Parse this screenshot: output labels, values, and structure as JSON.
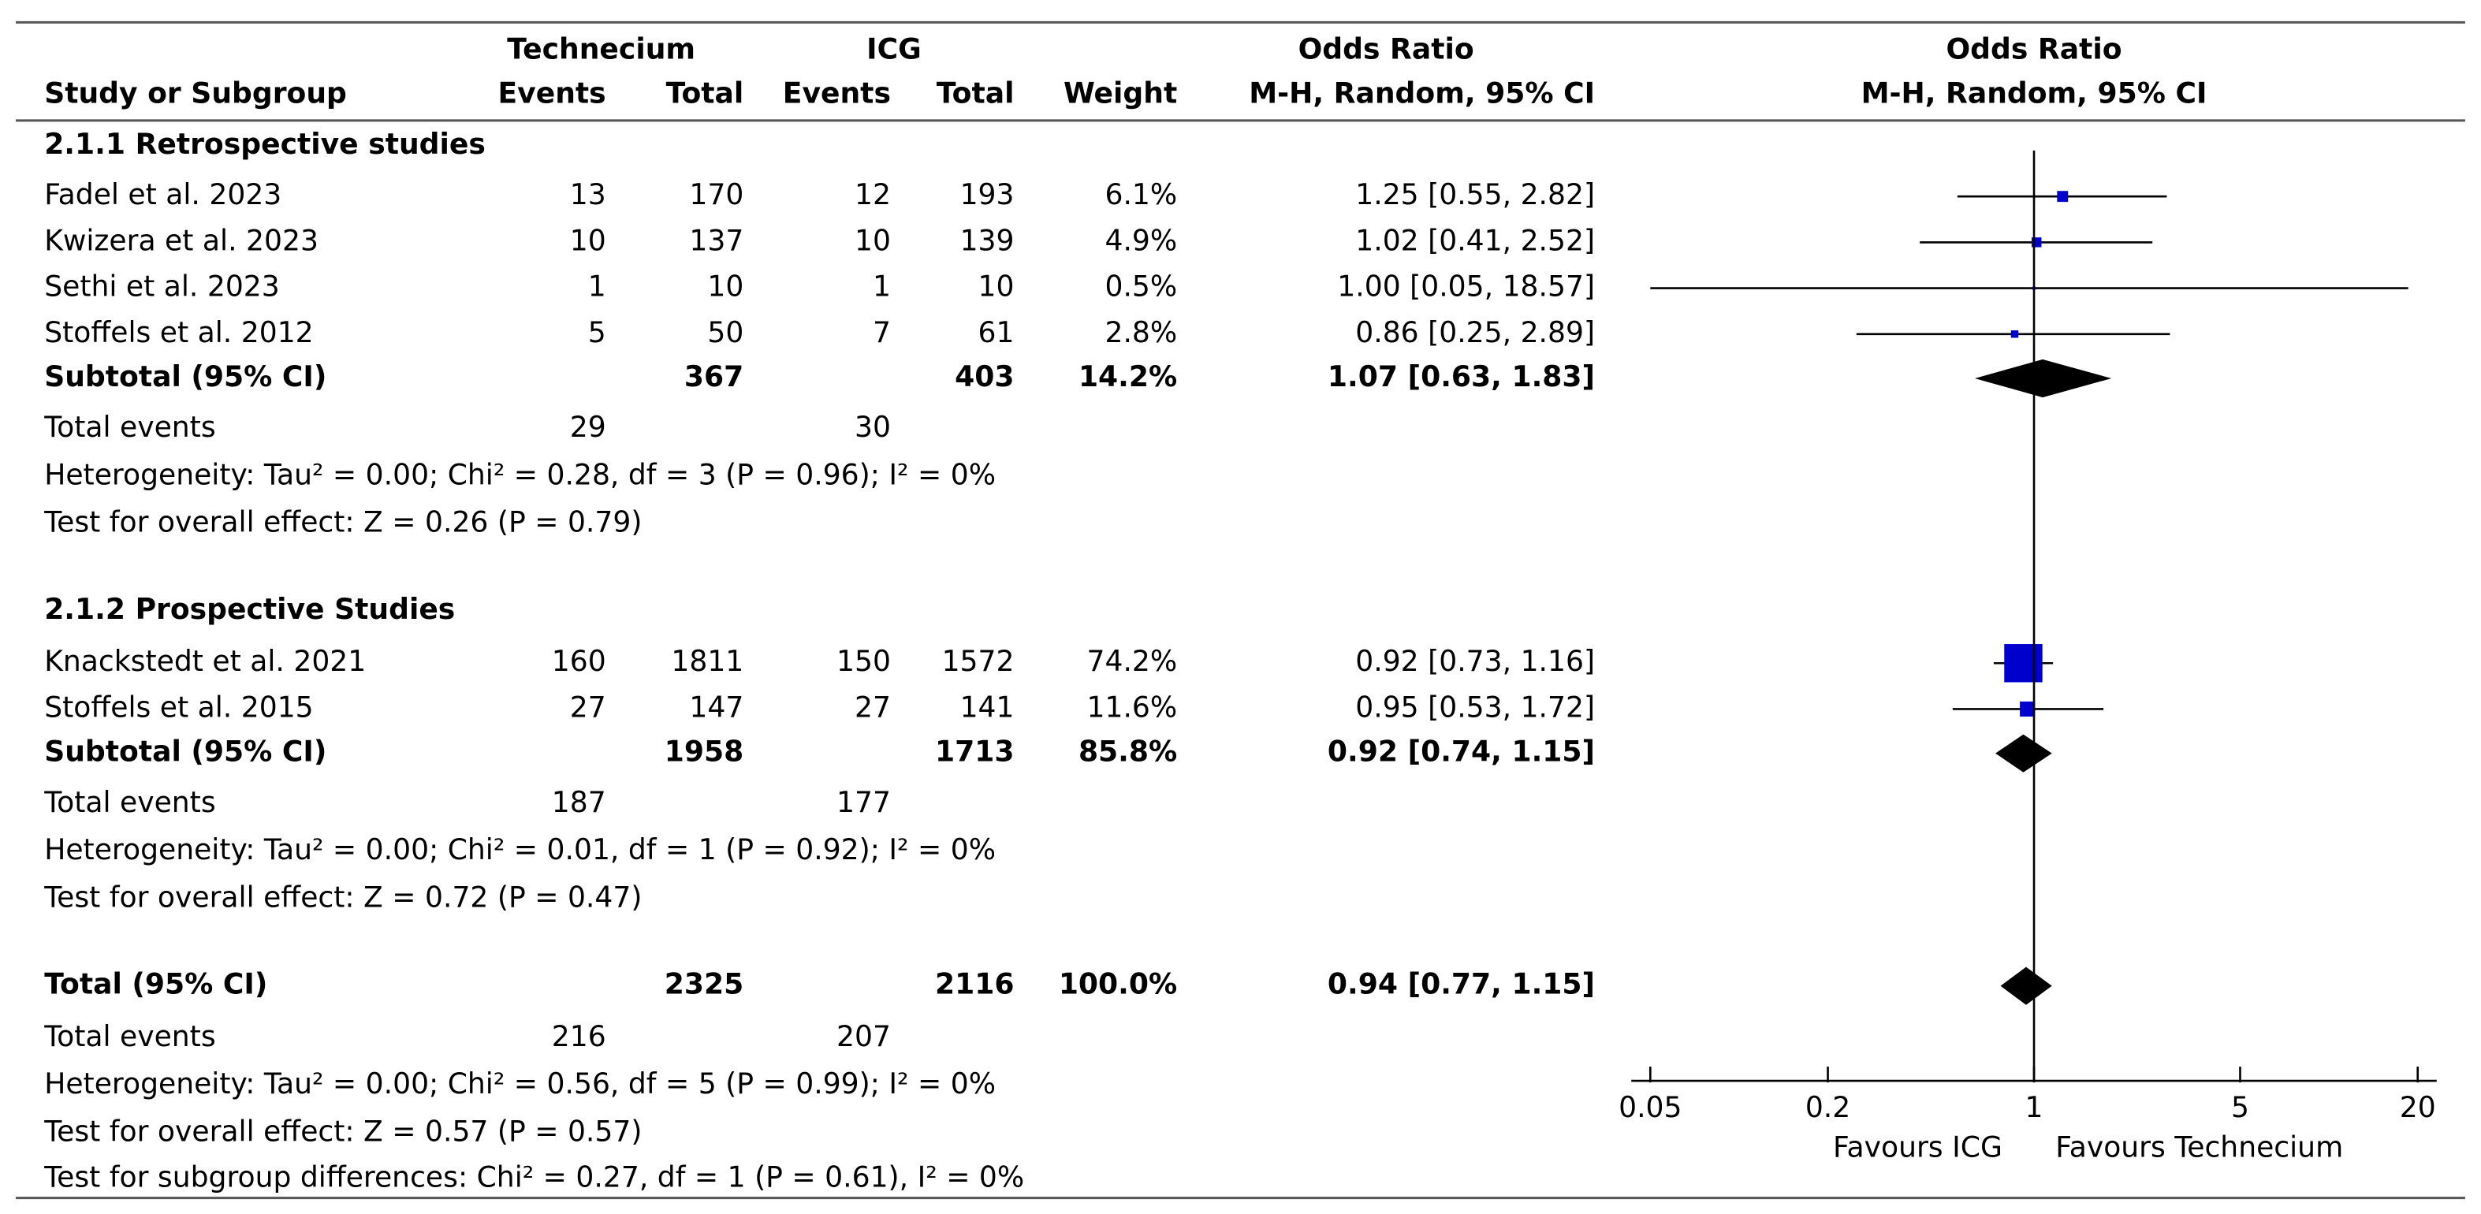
{
  "chart_data": {
    "type": "forest",
    "headers": {
      "study": "Study or Subgroup",
      "group1": "Technecium",
      "group2": "ICG",
      "group1_events": "Events",
      "group1_total": "Total",
      "group2_events": "Events",
      "group2_total": "Total",
      "weight": "Weight",
      "or_title": "Odds Ratio",
      "or_method": "M-H, Random, 95% CI",
      "plot_title": "Odds Ratio",
      "plot_method": "M-H, Random, 95% CI"
    },
    "subgroups": [
      {
        "title": "2.1.1 Retrospective studies",
        "studies": [
          {
            "name": "Fadel et al. 2023",
            "t_events": 13,
            "t_total": 170,
            "c_events": 12,
            "c_total": 193,
            "weight": 6.1,
            "weight_label": "6.1%",
            "or": 1.25,
            "ci": [
              0.55,
              2.82
            ],
            "or_label": "1.25 [0.55, 2.82]"
          },
          {
            "name": "Kwizera et al. 2023",
            "t_events": 10,
            "t_total": 137,
            "c_events": 10,
            "c_total": 139,
            "weight": 4.9,
            "weight_label": "4.9%",
            "or": 1.02,
            "ci": [
              0.41,
              2.52
            ],
            "or_label": "1.02 [0.41, 2.52]"
          },
          {
            "name": "Sethi et al. 2023",
            "t_events": 1,
            "t_total": 10,
            "c_events": 1,
            "c_total": 10,
            "weight": 0.5,
            "weight_label": "0.5%",
            "or": 1.0,
            "ci": [
              0.05,
              18.57
            ],
            "or_label": "1.00 [0.05, 18.57]"
          },
          {
            "name": "Stoffels et al. 2012",
            "t_events": 5,
            "t_total": 50,
            "c_events": 7,
            "c_total": 61,
            "weight": 2.8,
            "weight_label": "2.8%",
            "or": 0.86,
            "ci": [
              0.25,
              2.89
            ],
            "or_label": "0.86 [0.25, 2.89]"
          }
        ],
        "subtotal": {
          "label": "Subtotal (95% CI)",
          "t_total": 367,
          "c_total": 403,
          "weight": 14.2,
          "weight_label": "14.2%",
          "or": 1.07,
          "ci": [
            0.63,
            1.83
          ],
          "or_label": "1.07 [0.63, 1.83]"
        },
        "events": {
          "label": "Total events",
          "t": 29,
          "c": 30
        },
        "heterogeneity": "Heterogeneity: Tau² = 0.00; Chi² = 0.28, df = 3 (P = 0.96); I² = 0%",
        "overall": "Test for overall effect: Z = 0.26 (P = 0.79)"
      },
      {
        "title": "2.1.2 Prospective Studies",
        "studies": [
          {
            "name": "Knackstedt et al. 2021",
            "t_events": 160,
            "t_total": 1811,
            "c_events": 150,
            "c_total": 1572,
            "weight": 74.2,
            "weight_label": "74.2%",
            "or": 0.92,
            "ci": [
              0.73,
              1.16
            ],
            "or_label": "0.92 [0.73, 1.16]"
          },
          {
            "name": "Stoffels et al. 2015",
            "t_events": 27,
            "t_total": 147,
            "c_events": 27,
            "c_total": 141,
            "weight": 11.6,
            "weight_label": "11.6%",
            "or": 0.95,
            "ci": [
              0.53,
              1.72
            ],
            "or_label": "0.95 [0.53, 1.72]"
          }
        ],
        "subtotal": {
          "label": "Subtotal (95% CI)",
          "t_total": 1958,
          "c_total": 1713,
          "weight": 85.8,
          "weight_label": "85.8%",
          "or": 0.92,
          "ci": [
            0.74,
            1.15
          ],
          "or_label": "0.92 [0.74, 1.15]"
        },
        "events": {
          "label": "Total events",
          "t": 187,
          "c": 177
        },
        "heterogeneity": "Heterogeneity: Tau² = 0.00; Chi² = 0.01, df = 1 (P = 0.92); I² = 0%",
        "overall": "Test for overall effect: Z = 0.72 (P = 0.47)"
      }
    ],
    "total": {
      "label": "Total (95% CI)",
      "t_total": 2325,
      "c_total": 2116,
      "weight": 100.0,
      "weight_label": "100.0%",
      "or": 0.94,
      "ci": [
        0.77,
        1.15
      ],
      "or_label": "0.94 [0.77, 1.15]",
      "events": {
        "label": "Total events",
        "t": 216,
        "c": 207
      },
      "heterogeneity": "Heterogeneity: Tau² = 0.00; Chi² = 0.56, df = 5 (P = 0.99); I² = 0%",
      "overall": "Test for overall effect: Z = 0.57 (P = 0.57)",
      "subgroup_diff": "Test for subgroup differences: Chi² = 0.27, df = 1 (P = 0.61), I² = 0%"
    },
    "xscale": "log",
    "xlim": [
      0.05,
      20
    ],
    "xticks": [
      0.05,
      0.2,
      1,
      5,
      20
    ],
    "xlabel_left": "Favours ICG",
    "xlabel_right": "Favours Technecium",
    "color": "#0000cc"
  }
}
